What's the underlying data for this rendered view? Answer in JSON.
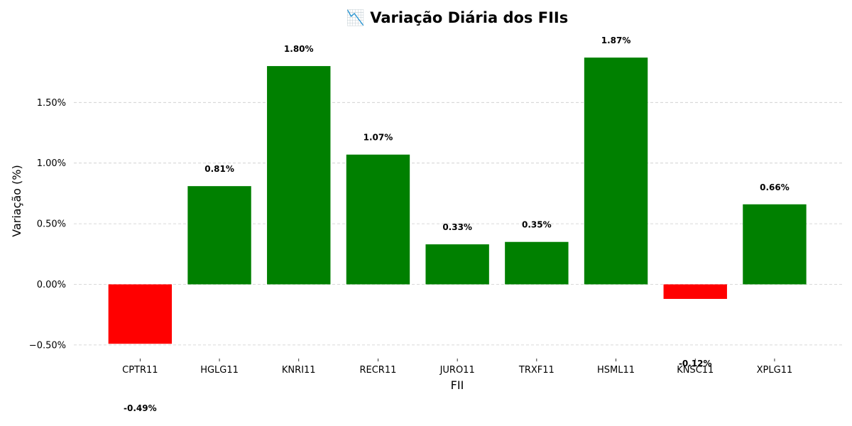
{
  "chart_data": {
    "type": "bar",
    "title": "📉 Variação Diária dos FIIs",
    "xlabel": "FII",
    "ylabel": "Variação (%)",
    "categories": [
      "CPTR11",
      "HGLG11",
      "KNRI11",
      "RECR11",
      "JURO11",
      "TRXF11",
      "HSML11",
      "KNSC11",
      "XPLG11"
    ],
    "values": [
      -0.49,
      0.81,
      1.8,
      1.07,
      0.33,
      0.35,
      1.87,
      -0.12,
      0.66
    ],
    "value_labels": [
      "-0.49%",
      "0.81%",
      "1.80%",
      "1.07%",
      "0.33%",
      "0.35%",
      "1.87%",
      "-0.12%",
      "0.66%"
    ],
    "yticks": [
      -0.5,
      0.0,
      0.5,
      1.0,
      1.5
    ],
    "ytick_labels": [
      "−0.50%",
      "0.00%",
      "0.50%",
      "1.00%",
      "1.50%"
    ],
    "ylim": [
      -0.6,
      2.1
    ],
    "grid": true,
    "grid_axis": "y",
    "colors": {
      "positive": "#008000",
      "negative": "#ff0000"
    }
  }
}
